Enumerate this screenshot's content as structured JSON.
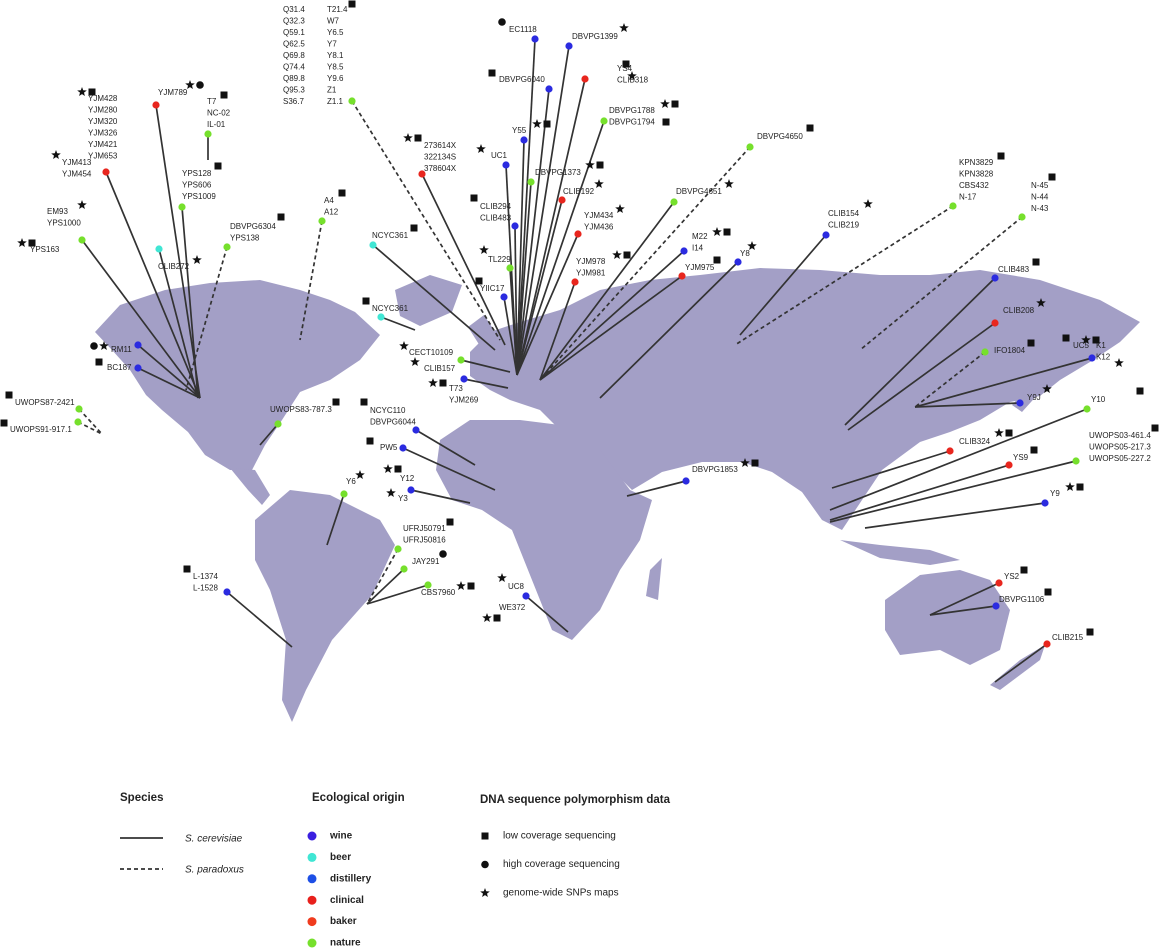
{
  "groups": [
    {
      "lines": [
        "YJM428",
        "YJM280",
        "YJM320",
        "YJM326",
        "YJM421",
        "YJM653"
      ]
    },
    {
      "lines": [
        "YJM413",
        "YJM454"
      ],
      "color": "#e8261e"
    },
    {
      "lines": [
        "EM93",
        "YPS1000"
      ]
    },
    {
      "lines": [
        "YPS163"
      ],
      "color": "#76e02c"
    },
    {
      "lines": [
        "YJM789"
      ],
      "color": "#e8261e"
    },
    {
      "lines": [
        "T7",
        "NC-02",
        "IL-01"
      ],
      "color": "#76e02c"
    },
    {
      "lines": [
        "YPS128",
        "YPS606",
        "YPS1009"
      ],
      "color": "#76e02c"
    },
    {
      "lines": [
        "CLIB272"
      ],
      "color": "#40e6d4"
    },
    {
      "lines": [
        "DBVPG6304",
        "YPS138"
      ],
      "color": "#76e02c",
      "dashed": true
    },
    {
      "lines": [
        "A4",
        "A12"
      ],
      "color": "#76e02c",
      "dashed": true
    },
    {
      "lines": [
        "RM11"
      ],
      "color": "#2b2be0"
    },
    {
      "lines": [
        "BC187"
      ],
      "color": "#2b2be0"
    },
    {
      "lines": [
        "UWOPS87-2421"
      ],
      "color": "#76e02c",
      "dashed": true
    },
    {
      "lines": [
        "UWOPS91-917.1"
      ],
      "color": "#76e02c",
      "dashed": true
    },
    {
      "lines": [
        "UWOPS83-787.3"
      ],
      "color": "#76e02c"
    },
    {
      "lines": [
        "Q31.4",
        "Q32.3",
        "Q59.1",
        "Q62.5",
        "Q69.8",
        "Q74.4",
        "Q89.8",
        "Q95.3",
        "S36.7"
      ]
    },
    {
      "lines": [
        "T21.4",
        "W7",
        "Y6.5",
        "Y7",
        "Y8.1",
        "Y8.5",
        "Y9.6",
        "Z1",
        "Z1.1"
      ],
      "color": "#76e02c",
      "dashed": true
    },
    {
      "lines": [
        "273614X",
        "322134S",
        "378604X"
      ],
      "color": "#e8261e"
    },
    {
      "lines": [
        "NCYC361"
      ],
      "color": "#40e6d4"
    },
    {
      "lines": [
        "NCYC361"
      ],
      "color": "#40e6d4"
    },
    {
      "lines": [
        "CECT10109"
      ],
      "color": "#76e02c"
    },
    {
      "lines": [
        "CLIB157"
      ]
    },
    {
      "lines": [
        "T73",
        "YJM269"
      ],
      "color": "#2b2be0"
    },
    {
      "lines": [
        "NCYC110",
        "DBVPG6044"
      ],
      "color": "#2b2be0"
    },
    {
      "lines": [
        "PW5"
      ],
      "color": "#2b2be0"
    },
    {
      "lines": [
        "Y12"
      ],
      "color": "#2b2be0"
    },
    {
      "lines": [
        "Y3"
      ]
    },
    {
      "lines": [
        "Y6"
      ],
      "color": "#76e02c"
    },
    {
      "lines": [
        "UFRJ50791",
        "UFRJ50816"
      ],
      "color": "#76e02c",
      "dashed": true
    },
    {
      "lines": [
        "JAY291"
      ],
      "color": "#76e02c"
    },
    {
      "lines": [
        "CBS7960"
      ],
      "color": "#76e02c"
    },
    {
      "lines": [
        "L-1374",
        "L-1528"
      ],
      "color": "#2b2be0"
    },
    {
      "lines": [
        "UC8"
      ],
      "color": "#2b2be0"
    },
    {
      "lines": [
        "WE372"
      ]
    },
    {
      "lines": [
        "EC1118"
      ],
      "color": "#2b2be0"
    },
    {
      "lines": [
        "DBVPG1399"
      ],
      "color": "#2b2be0"
    },
    {
      "lines": [
        "DBVPG6040"
      ],
      "color": "#2b2be0"
    },
    {
      "lines": [
        "YS4",
        "CLIB318"
      ],
      "color": "#e8261e"
    },
    {
      "lines": [
        "DBVPG1788",
        "DBVPG1794"
      ],
      "color": "#76e02c"
    },
    {
      "lines": [
        "Y55"
      ],
      "color": "#2b2be0"
    },
    {
      "lines": [
        "UC1"
      ],
      "color": "#2b2be0"
    },
    {
      "lines": [
        "DBVPG1373"
      ],
      "color": "#76e02c"
    },
    {
      "lines": [
        "CLIB192"
      ],
      "color": "#e8261e"
    },
    {
      "lines": [
        "CLIB294",
        "CLIB483"
      ],
      "color": "#2b2be0"
    },
    {
      "lines": [
        "YJM434",
        "YJM436"
      ],
      "color": "#e8261e"
    },
    {
      "lines": [
        "TL229"
      ],
      "color": "#76e02c"
    },
    {
      "lines": [
        "YIIC17"
      ],
      "color": "#2b2be0"
    },
    {
      "lines": [
        "YJM978",
        "YJM981"
      ],
      "color": "#e8261e"
    },
    {
      "lines": [
        "M22",
        "I14"
      ],
      "color": "#2b2be0"
    },
    {
      "lines": [
        "YJM975"
      ],
      "color": "#e8261e"
    },
    {
      "lines": [
        "Y8"
      ],
      "color": "#2b2be0"
    },
    {
      "lines": [
        "DBVPG4651"
      ],
      "color": "#76e02c"
    },
    {
      "lines": [
        "DBVPG4650"
      ],
      "color": "#76e02c",
      "dashed": true
    },
    {
      "lines": [
        "CLIB154",
        "CLIB219"
      ],
      "color": "#2b2be0"
    },
    {
      "lines": [
        "KPN3829",
        "KPN3828",
        "CBS432",
        "N-17"
      ],
      "color": "#76e02c",
      "dashed": true
    },
    {
      "lines": [
        "N-45",
        "N-44",
        "N-43"
      ],
      "color": "#76e02c",
      "dashed": true
    },
    {
      "lines": [
        "CLIB483"
      ],
      "color": "#2b2be0"
    },
    {
      "lines": [
        "CLIB208"
      ],
      "color": "#e8261e"
    },
    {
      "lines": [
        "IFO1804"
      ],
      "color": "#76e02c",
      "dashed": true
    },
    {
      "lines": [
        "UC5"
      ]
    },
    {
      "lines": [
        "K1",
        "K12"
      ],
      "color": "#2b2be0"
    },
    {
      "lines": [
        "Y9J"
      ],
      "color": "#2b2be0"
    },
    {
      "lines": [
        "Y10"
      ],
      "color": "#76e02c"
    },
    {
      "lines": [
        "CLIB324"
      ],
      "color": "#e8261e"
    },
    {
      "lines": [
        "YS9"
      ],
      "color": "#e8261e"
    },
    {
      "lines": [
        "UWOPS03-461.4",
        "UWOPS05-217.3",
        "UWOPS05-227.2"
      ],
      "color": "#76e02c"
    },
    {
      "lines": [
        "Y9"
      ],
      "color": "#2b2be0"
    },
    {
      "lines": [
        "DBVPG1853"
      ],
      "color": "#2b2be0"
    },
    {
      "lines": [
        "YS2"
      ],
      "color": "#e8261e"
    },
    {
      "lines": [
        "DBVPG1106"
      ],
      "color": "#2b2be0"
    },
    {
      "lines": [
        "CLIB215"
      ],
      "color": "#e8261e"
    }
  ],
  "legend": {
    "species": {
      "title": "Species",
      "items": [
        {
          "label": "S. cerevisiae",
          "dashed": false
        },
        {
          "label": "S. paradoxus",
          "dashed": true
        }
      ]
    },
    "origin": {
      "title": "Ecological origin",
      "items": [
        {
          "label": "wine",
          "color": "#3a1fe0"
        },
        {
          "label": "beer",
          "color": "#40e6d4"
        },
        {
          "label": "distillery",
          "color": "#1d4fe6"
        },
        {
          "label": "clinical",
          "color": "#e8201c"
        },
        {
          "label": "baker",
          "color": "#f03b1e"
        },
        {
          "label": "nature",
          "color": "#76e02c"
        }
      ]
    },
    "dna": {
      "title": "DNA sequence polymorphism data",
      "items": [
        "low coverage sequencing",
        "high coverage sequencing",
        "genome-wide SNPs maps"
      ]
    }
  }
}
